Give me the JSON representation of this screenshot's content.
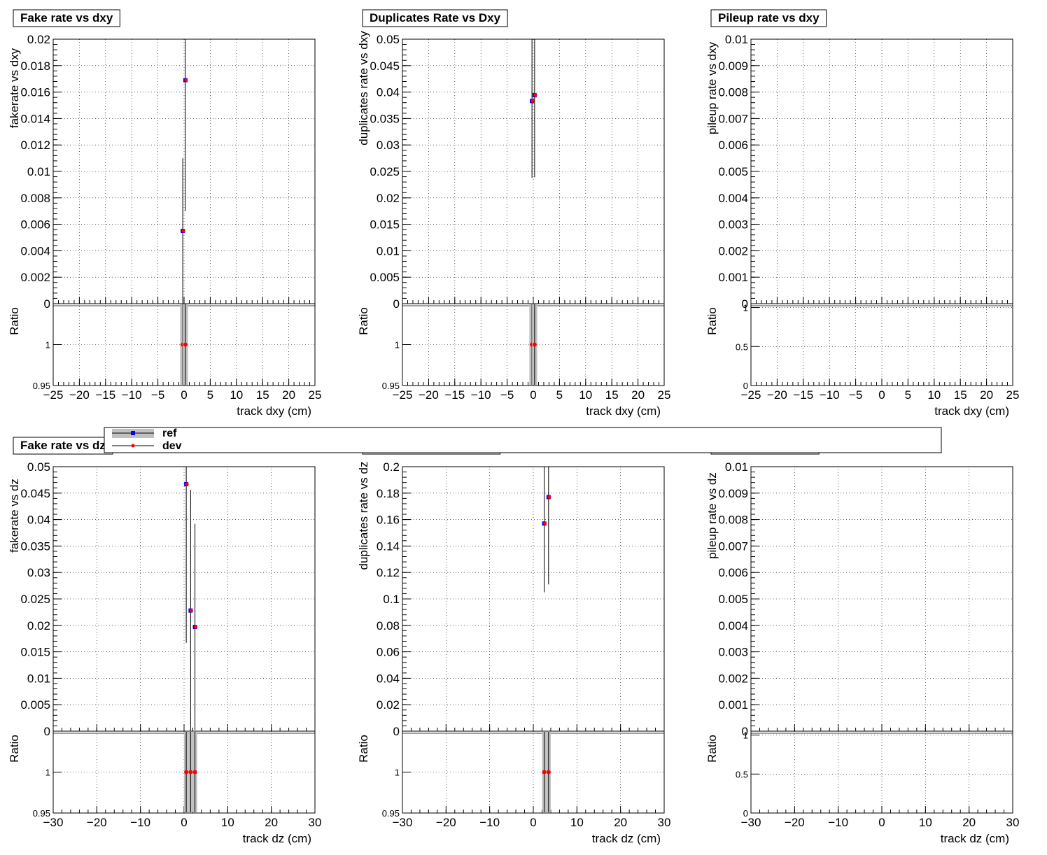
{
  "colors": {
    "ref": "#0000ff",
    "dev": "#ff0000",
    "band": "#c0c0c0",
    "error_bar": "#000000"
  },
  "legend": {
    "entries": [
      {
        "label": "ref",
        "marker": "square",
        "color": "#0000ff"
      },
      {
        "label": "dev",
        "marker": "circle",
        "color": "#ff0000"
      }
    ]
  },
  "chart_data": [
    {
      "type": "scatter",
      "title": "Fake rate vs dxy",
      "xlabel": "track dxy (cm)",
      "ylabel": "fakerate vs dxy",
      "xlim": [
        -25,
        25
      ],
      "ylim": [
        0,
        0.02
      ],
      "xticks": [
        "−25",
        "−20",
        "−15",
        "−10",
        "−5",
        "0",
        "5",
        "10",
        "15",
        "20",
        "25"
      ],
      "yticks": [
        "0",
        "0.002",
        "0.004",
        "0.006",
        "0.008",
        "0.01",
        "0.012",
        "0.014",
        "0.016",
        "0.018",
        "0.02"
      ],
      "grid": true,
      "ratio": {
        "ylabel": "Ratio",
        "ylim": [
          0.95,
          1.05
        ],
        "yticks": [
          "0.95",
          "1"
        ]
      },
      "series": [
        {
          "name": "ref",
          "points": [
            {
              "x": -0.25,
              "y": 0.0055,
              "err": 0.0055
            },
            {
              "x": 0.25,
              "y": 0.0169,
              "err": 0.0099
            }
          ]
        },
        {
          "name": "dev",
          "points": [
            {
              "x": -0.25,
              "y": 0.0055,
              "err": 0.0055
            },
            {
              "x": 0.25,
              "y": 0.0169,
              "err": 0.0099
            }
          ]
        }
      ],
      "ratio_points": [
        {
          "x": -0.25,
          "y": 1,
          "band": 0.5
        },
        {
          "x": 0.25,
          "y": 1,
          "band": 0.5
        }
      ]
    },
    {
      "type": "scatter",
      "title": "Duplicates Rate vs Dxy",
      "xlabel": "track dxy (cm)",
      "ylabel": "duplicates rate vs dxy",
      "xlim": [
        -25,
        25
      ],
      "ylim": [
        0,
        0.05
      ],
      "xticks": [
        "−25",
        "−20",
        "−15",
        "−10",
        "−5",
        "0",
        "5",
        "10",
        "15",
        "20",
        "25"
      ],
      "yticks": [
        "0",
        "0.005",
        "0.01",
        "0.015",
        "0.02",
        "0.025",
        "0.03",
        "0.035",
        "0.04",
        "0.045",
        "0.05"
      ],
      "grid": true,
      "ratio": {
        "ylabel": "Ratio",
        "ylim": [
          0.95,
          1.05
        ],
        "yticks": [
          "0.95",
          "1"
        ]
      },
      "series": [
        {
          "name": "ref",
          "points": [
            {
              "x": -0.25,
              "y": 0.0383,
              "err": 0.0145
            },
            {
              "x": 0.25,
              "y": 0.0394,
              "err": 0.0155
            }
          ]
        },
        {
          "name": "dev",
          "points": [
            {
              "x": -0.25,
              "y": 0.0383,
              "err": 0.0145
            },
            {
              "x": 0.25,
              "y": 0.0394,
              "err": 0.0155
            }
          ]
        }
      ],
      "ratio_points": [
        {
          "x": -0.25,
          "y": 1,
          "band": 0.5
        },
        {
          "x": 0.25,
          "y": 1,
          "band": 0.5
        }
      ]
    },
    {
      "type": "scatter",
      "title": "Pileup rate vs dxy",
      "xlabel": "track dxy (cm)",
      "ylabel": "pileup rate vs dxy",
      "xlim": [
        -25,
        25
      ],
      "ylim": [
        0,
        0.01
      ],
      "xticks": [
        "−25",
        "−20",
        "−15",
        "−10",
        "−5",
        "0",
        "5",
        "10",
        "15",
        "20",
        "25"
      ],
      "yticks": [
        "0",
        "0.001",
        "0.002",
        "0.003",
        "0.004",
        "0.005",
        "0.006",
        "0.007",
        "0.008",
        "0.009",
        "0.01"
      ],
      "grid": true,
      "ratio": {
        "ylabel": "Ratio",
        "ylim": [
          0,
          1.05
        ],
        "yticks": [
          "0",
          "0.5",
          "1"
        ]
      },
      "series": [
        {
          "name": "ref",
          "points": []
        },
        {
          "name": "dev",
          "points": []
        }
      ],
      "ratio_points": []
    },
    {
      "type": "scatter",
      "title": "Fake rate vs dz",
      "xlabel": "track dz (cm)",
      "ylabel": "fakerate vs dz",
      "xlim": [
        -30,
        30
      ],
      "ylim": [
        0,
        0.05
      ],
      "xticks": [
        "−30",
        "−20",
        "−10",
        "0",
        "10",
        "20",
        "30"
      ],
      "yticks": [
        "0",
        "0.005",
        "0.01",
        "0.015",
        "0.02",
        "0.025",
        "0.03",
        "0.035",
        "0.04",
        "0.045",
        "0.05"
      ],
      "grid": true,
      "ratio": {
        "ylabel": "Ratio",
        "ylim": [
          0.95,
          1.05
        ],
        "yticks": [
          "0.95",
          "1"
        ]
      },
      "series": [
        {
          "name": "ref",
          "points": [
            {
              "x": 0.5,
              "y": 0.0467,
              "err": 0.03
            },
            {
              "x": 1.5,
              "y": 0.0228,
              "err": 0.0228
            },
            {
              "x": 2.5,
              "y": 0.0197,
              "err": 0.0195
            }
          ]
        },
        {
          "name": "dev",
          "points": [
            {
              "x": 0.5,
              "y": 0.0467,
              "err": 0.03
            },
            {
              "x": 1.5,
              "y": 0.0228,
              "err": 0.0228
            },
            {
              "x": 2.5,
              "y": 0.0197,
              "err": 0.0195
            }
          ]
        }
      ],
      "ratio_points": [
        {
          "x": 0.5,
          "y": 1,
          "band": 0.5
        },
        {
          "x": 1.5,
          "y": 1,
          "band": 0.5
        },
        {
          "x": 2.5,
          "y": 1,
          "band": 0.5
        }
      ]
    },
    {
      "type": "scatter",
      "title": "Duplicates Rate vs Dz",
      "xlabel": "track dz (cm)",
      "ylabel": "duplicates rate vs dz",
      "xlim": [
        -30,
        30
      ],
      "ylim": [
        0,
        0.2
      ],
      "xticks": [
        "−30",
        "−20",
        "−10",
        "0",
        "10",
        "20",
        "30"
      ],
      "yticks": [
        "0",
        "0.02",
        "0.04",
        "0.06",
        "0.08",
        "0.1",
        "0.12",
        "0.14",
        "0.16",
        "0.18",
        "0.2"
      ],
      "grid": true,
      "ratio": {
        "ylabel": "Ratio",
        "ylim": [
          0.95,
          1.05
        ],
        "yticks": [
          "0.95",
          "1"
        ]
      },
      "series": [
        {
          "name": "ref",
          "points": [
            {
              "x": 2.5,
              "y": 0.157,
              "err": 0.052
            },
            {
              "x": 3.5,
              "y": 0.177,
              "err": 0.066
            }
          ]
        },
        {
          "name": "dev",
          "points": [
            {
              "x": 2.5,
              "y": 0.157,
              "err": 0.052
            },
            {
              "x": 3.5,
              "y": 0.177,
              "err": 0.066
            }
          ]
        }
      ],
      "ratio_points": [
        {
          "x": 2.5,
          "y": 1,
          "band": 0.5
        },
        {
          "x": 3.5,
          "y": 1,
          "band": 0.5
        }
      ]
    },
    {
      "type": "scatter",
      "title": "Pileup rate vs dz",
      "xlabel": "track dz (cm)",
      "ylabel": "pileup rate vs dz",
      "xlim": [
        -30,
        30
      ],
      "ylim": [
        0,
        0.01
      ],
      "xticks": [
        "−30",
        "−20",
        "−10",
        "0",
        "10",
        "20",
        "30"
      ],
      "yticks": [
        "0",
        "0.001",
        "0.002",
        "0.003",
        "0.004",
        "0.005",
        "0.006",
        "0.007",
        "0.008",
        "0.009",
        "0.01"
      ],
      "grid": true,
      "ratio": {
        "ylabel": "Ratio",
        "ylim": [
          0,
          1.05
        ],
        "yticks": [
          "0",
          "0.5",
          "1"
        ]
      },
      "series": [
        {
          "name": "ref",
          "points": []
        },
        {
          "name": "dev",
          "points": []
        }
      ],
      "ratio_points": []
    }
  ]
}
